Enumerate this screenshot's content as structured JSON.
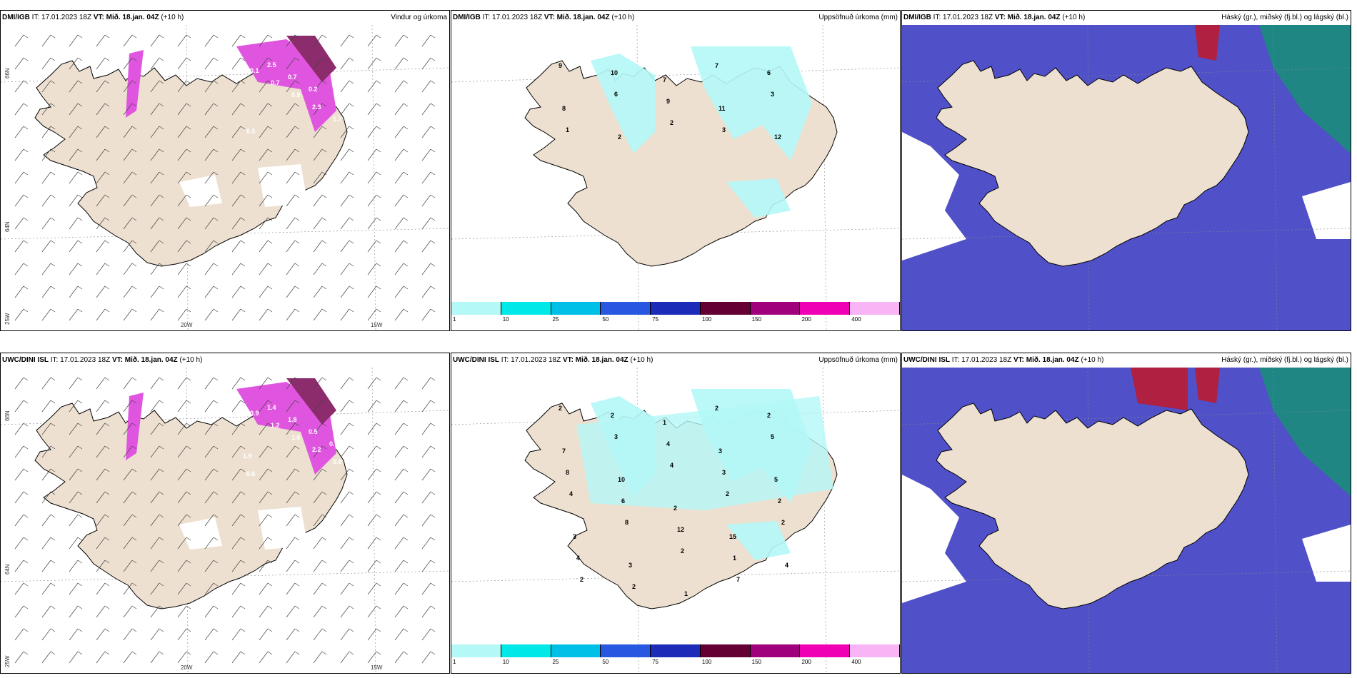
{
  "panels": [
    {
      "model": "DMI/IGB",
      "it": "IT: 17.01.2023 18Z",
      "vt_prefix": "VT:",
      "vt": "Mið. 18.jan. 04Z",
      "lead": "(+10 h)",
      "title": "Vindur og úrkoma",
      "type": "wind"
    },
    {
      "model": "DMI/IGB",
      "it": "IT: 17.01.2023 18Z",
      "vt_prefix": "VT:",
      "vt": "Mið. 18.jan. 04Z",
      "lead": "(+10 h)",
      "title": "Uppsöfnuð úrkoma (mm)",
      "type": "precip"
    },
    {
      "model": "DMI/IGB",
      "it": "IT: 17.01.2023 18Z",
      "vt_prefix": "VT:",
      "vt": "Mið. 18.jan. 04Z",
      "lead": "(+10 h)",
      "title": "Háský (gr.), miðský (fj.bl.) og lágský (bl.)",
      "type": "cloud"
    },
    {
      "model": "UWC/DINI ISL",
      "it": "IT: 17.01.2023 18Z",
      "vt_prefix": "VT:",
      "vt": "Mið. 18.jan. 04Z",
      "lead": "(+10 h)",
      "title": "",
      "type": "wind"
    },
    {
      "model": "UWC/DINI ISL",
      "it": "IT: 17.01.2023 18Z",
      "vt_prefix": "VT:",
      "vt": "Mið. 18.jan. 04Z",
      "lead": "(+10 h)",
      "title": "Uppsöfnuð úrkoma (mm)",
      "type": "precip"
    },
    {
      "model": "UWC/DINI ISL",
      "it": "IT: 17.01.2023 18Z",
      "vt_prefix": "VT:",
      "vt": "Mið. 18.jan. 04Z",
      "lead": "(+10 h)",
      "title": "Háský (gr.), miðský (fj.bl.) og lágský (bl.)",
      "type": "cloud"
    }
  ],
  "axes": {
    "lon_w": "20W",
    "lon_e": "15W",
    "lat_n": "66N",
    "lat_s": "64N",
    "lon_far": "25W"
  },
  "colorbar": {
    "labels": [
      "1",
      "10",
      "25",
      "50",
      "75",
      "100",
      "150",
      "200",
      "400"
    ],
    "colors": [
      "#b4f8f8",
      "#00e8e8",
      "#00c0e8",
      "#2858e0",
      "#1c2cb8",
      "#640034",
      "#a0007c",
      "#f000b4",
      "#f8b4f4"
    ]
  },
  "precip_top": [
    "9",
    "10",
    "7",
    "7",
    "6",
    "8",
    "6",
    "9",
    "11",
    "3",
    "1",
    "2",
    "2",
    "3",
    "12"
  ],
  "precip_bot": [
    "2",
    "2",
    "1",
    "2",
    "2",
    "7",
    "3",
    "4",
    "3",
    "5",
    "8",
    "10",
    "4",
    "3",
    "5",
    "4",
    "6",
    "2",
    "2",
    "2",
    "3",
    "8",
    "12",
    "15",
    "2",
    "4",
    "3",
    "2",
    "1",
    "4",
    "2",
    "2",
    "1",
    "7"
  ],
  "wind_top": [
    "0.7",
    "0.1",
    "0.7",
    "0.9",
    "2.3",
    "1.7",
    "0.5",
    "2.5",
    "0.7",
    "0.2"
  ],
  "wind_bot": [
    "0.3",
    "0.9",
    "1.2",
    "1.6",
    "2.2",
    "0.9",
    "0.6",
    "1.4",
    "1.8",
    "0.5",
    "0.7",
    "1.9"
  ],
  "colors": {
    "land": "#ede0d0",
    "precip_light": "#b4f8f8",
    "magenta": "#e055e0",
    "dark_magenta": "#8c2c6c",
    "cloud_blue": "#5050c8",
    "cloud_teal": "#1a8c7c",
    "cloud_red": "#b02040"
  }
}
